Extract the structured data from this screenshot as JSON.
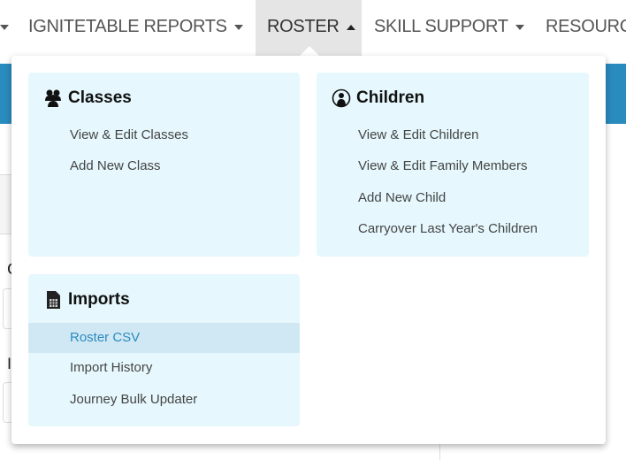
{
  "nav": {
    "items": [
      {
        "label": "IGNITETABLE REPORTS"
      },
      {
        "label": "ROSTER",
        "active": true
      },
      {
        "label": "SKILL SUPPORT"
      },
      {
        "label": "RESOURC"
      }
    ]
  },
  "background": {
    "label_1": "C",
    "label_2": "I",
    "band_color": "#2a8bbf"
  },
  "dropdown": {
    "classes": {
      "title": "Classes",
      "icon": "users-icon",
      "items": [
        "View & Edit Classes",
        "Add New Class"
      ]
    },
    "children": {
      "title": "Children",
      "icon": "child-icon",
      "items": [
        "View & Edit Children",
        "View & Edit Family Members",
        "Add New Child",
        "Carryover Last Year's Children"
      ]
    },
    "imports": {
      "title": "Imports",
      "icon": "csv-file-icon",
      "items": [
        "Roster CSV",
        "Import History",
        "Journey Bulk Updater"
      ],
      "highlighted": "Roster CSV"
    }
  }
}
